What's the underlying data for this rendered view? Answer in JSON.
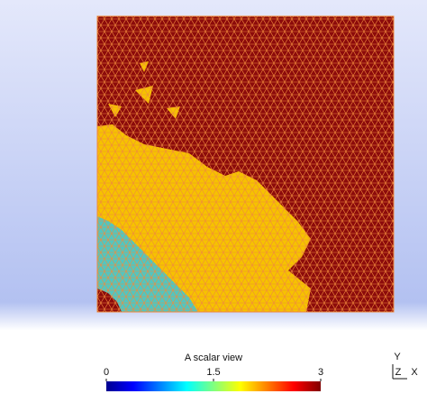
{
  "colorbar": {
    "title": "A scalar view",
    "range": [
      0,
      3
    ],
    "ticks": [
      0,
      1.5,
      3
    ]
  },
  "axes": {
    "labels": [
      "Y",
      "Z",
      "X"
    ]
  }
}
